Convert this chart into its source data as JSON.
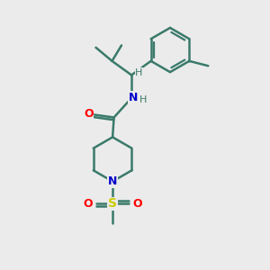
{
  "background_color": "#ebebeb",
  "bond_color": "#3a7a6a",
  "bond_width": 1.8,
  "atom_colors": {
    "O": "#ff0000",
    "N": "#0000cc",
    "S": "#cccc00",
    "H": "#3a7a6a",
    "C": "#3a7a6a"
  },
  "figsize": [
    3.0,
    3.0
  ],
  "dpi": 100
}
